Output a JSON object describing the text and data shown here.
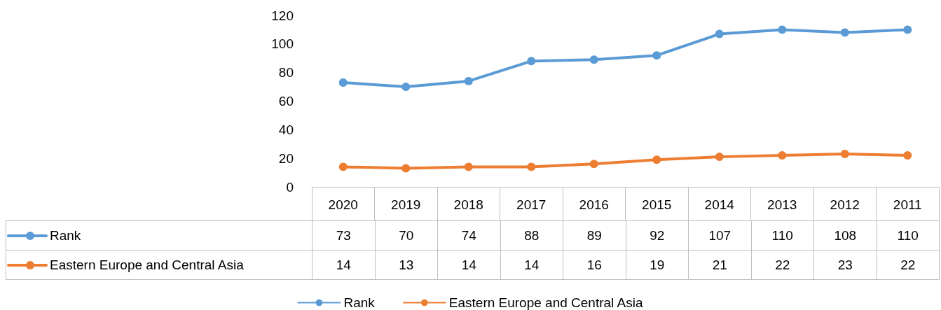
{
  "chart_data": {
    "type": "line",
    "categories": [
      "2020",
      "2019",
      "2018",
      "2017",
      "2016",
      "2015",
      "2014",
      "2013",
      "2012",
      "2011"
    ],
    "series": [
      {
        "name": "Rank",
        "color": "#5b9bd5",
        "values": [
          73,
          70,
          74,
          88,
          89,
          92,
          107,
          110,
          108,
          110
        ]
      },
      {
        "name": "Eastern Europe and Central Asia",
        "color": "#ed7d31",
        "values": [
          14,
          13,
          14,
          14,
          16,
          19,
          21,
          22,
          23,
          22
        ]
      }
    ],
    "ylim": [
      0,
      120
    ],
    "yticks": [
      0,
      20,
      40,
      60,
      80,
      100,
      120
    ],
    "grid": false,
    "legend": "bottom",
    "marker": "circle",
    "line_style": "solid",
    "data_labels": true
  }
}
